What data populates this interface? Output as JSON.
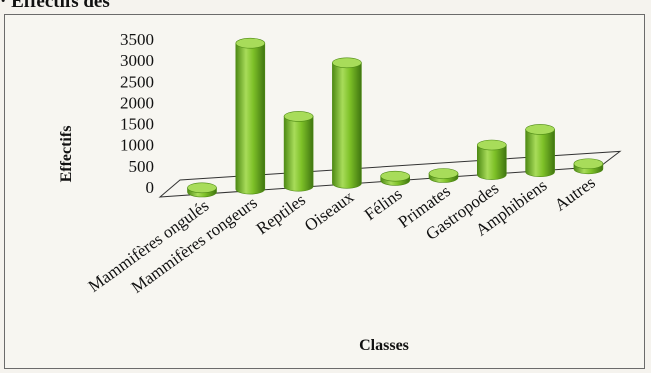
{
  "chart_data": {
    "type": "bar",
    "title": "· Effectifs des",
    "xlabel": "Classes",
    "ylabel": "Effectifs",
    "categories": [
      "Mammifères ongulés",
      "Mammifères rongeurs",
      "Reptiles",
      "Oiseaux",
      "Félins",
      "Primates",
      "Gastropodes",
      "Amphibiens",
      "Autres"
    ],
    "values": [
      100,
      3450,
      1650,
      2850,
      100,
      50,
      700,
      1000,
      120
    ],
    "yticks": [
      "0",
      "500",
      "1000",
      "1500",
      "2000",
      "2500",
      "3000",
      "3500"
    ],
    "ylim": [
      0,
      3500
    ],
    "bar_color": "#7ec128",
    "bar_dark_color": "#4e8a14",
    "bar_light_color": "#a8dc5a",
    "grid": false,
    "legend": "none"
  }
}
